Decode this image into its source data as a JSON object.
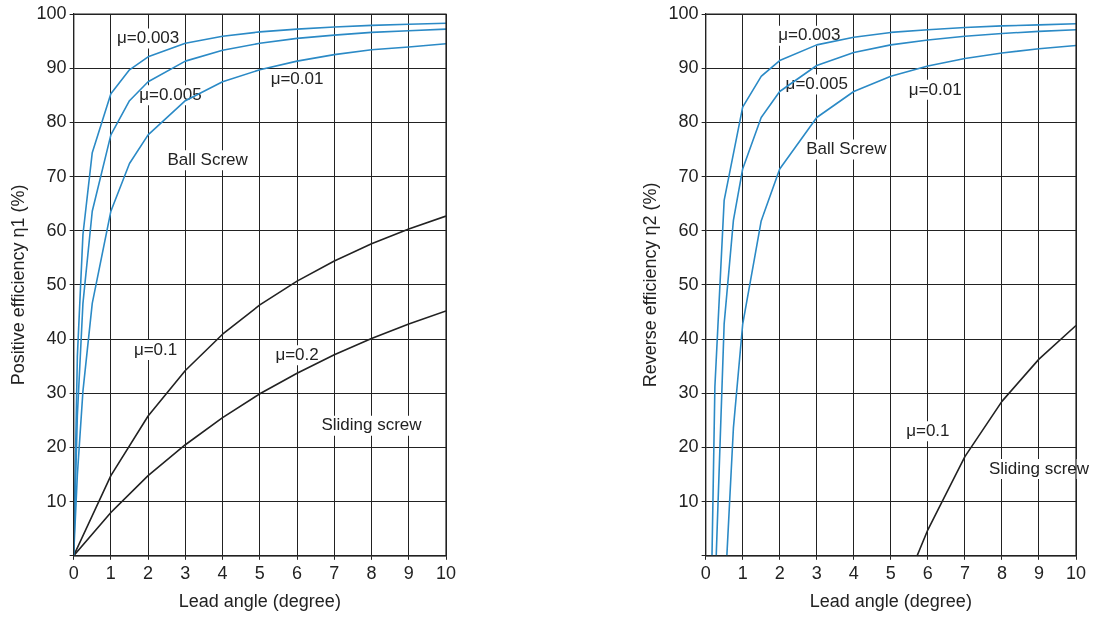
{
  "chart_data": [
    {
      "type": "line",
      "xlabel": "Lead angle (degree)",
      "ylabel": "Positive efficiency η1 (%)",
      "xlim": [
        0,
        10
      ],
      "xticks": [
        0,
        1,
        2,
        3,
        4,
        5,
        6,
        7,
        8,
        9,
        10
      ],
      "ylim": [
        0,
        100
      ],
      "yticks": [
        {
          "value": 0,
          "label": null
        },
        10,
        20,
        30,
        40,
        50,
        60,
        70,
        80,
        90,
        100
      ],
      "grid": true,
      "legend": false,
      "marker": "none",
      "line_style": "solid",
      "series": [
        {
          "color": "#2b8ac6",
          "x": [
            0,
            0.1,
            0.25,
            0.5,
            1,
            1.5,
            2,
            3,
            4,
            5,
            6,
            7,
            8,
            9,
            10
          ],
          "values": [
            0,
            36.8,
            59.3,
            74.4,
            85.3,
            89.7,
            92.1,
            94.6,
            95.9,
            96.7,
            97.2,
            97.6,
            97.9,
            98.1,
            98.3
          ]
        },
        {
          "color": "#2b8ac6",
          "x": [
            0,
            0.1,
            0.25,
            0.5,
            1,
            1.5,
            2,
            3,
            4,
            5,
            6,
            7,
            8,
            9,
            10
          ],
          "values": [
            0,
            25.9,
            46.6,
            63.6,
            77.7,
            84.0,
            87.5,
            91.3,
            93.3,
            94.6,
            95.5,
            96.1,
            96.6,
            96.9,
            97.2
          ]
        },
        {
          "color": "#2b8ac6",
          "x": [
            0,
            0.1,
            0.25,
            0.5,
            1,
            1.5,
            2,
            3,
            4,
            5,
            6,
            7,
            8,
            9,
            10
          ],
          "values": [
            0,
            14.9,
            30.4,
            46.6,
            63.6,
            72.4,
            77.7,
            84.0,
            87.5,
            89.7,
            91.3,
            92.5,
            93.4,
            93.9,
            94.5
          ]
        },
        {
          "color": "#222222",
          "x": [
            0,
            1,
            2,
            3,
            4,
            5,
            6,
            7,
            8,
            9,
            10
          ],
          "values": [
            0,
            14.8,
            25.8,
            34.2,
            40.9,
            46.3,
            50.7,
            54.4,
            57.6,
            60.3,
            62.7
          ]
        },
        {
          "color": "#222222",
          "x": [
            0,
            1,
            2,
            3,
            4,
            5,
            6,
            7,
            8,
            9,
            10
          ],
          "values": [
            0,
            8.0,
            14.8,
            20.5,
            25.5,
            29.9,
            33.7,
            37.1,
            40.1,
            42.8,
            45.2
          ]
        }
      ],
      "annotations": [
        "μ=0.003",
        "μ=0.005",
        "μ=0.01",
        "Ball Screw",
        "μ=0.1",
        "μ=0.2",
        "Sliding screw"
      ]
    },
    {
      "type": "line",
      "xlabel": "Lead angle (degree)",
      "ylabel": "Reverse efficiency η2 (%)",
      "xlim": [
        0,
        10
      ],
      "xticks": [
        0,
        1,
        2,
        3,
        4,
        5,
        6,
        7,
        8,
        9,
        10
      ],
      "ylim": [
        0,
        100
      ],
      "yticks": [
        {
          "value": 0,
          "label": null
        },
        10,
        20,
        30,
        40,
        50,
        60,
        70,
        80,
        90,
        100
      ],
      "grid": true,
      "legend": false,
      "marker": "none",
      "line_style": "solid",
      "series": [
        {
          "color": "#2b8ac6",
          "x": [
            0.172,
            0.25,
            0.5,
            1,
            1.5,
            2,
            3,
            4,
            5,
            6,
            7,
            8,
            9,
            10
          ],
          "values": [
            0,
            31.2,
            65.6,
            82.8,
            88.5,
            91.4,
            94.3,
            95.7,
            96.6,
            97.1,
            97.5,
            97.8,
            98.0,
            98.2
          ]
        },
        {
          "color": "#2b8ac6",
          "x": [
            0.286,
            0.5,
            0.75,
            1,
            1.5,
            2,
            3,
            4,
            5,
            6,
            7,
            8,
            9,
            10
          ],
          "values": [
            0,
            42.8,
            61.9,
            71.4,
            80.9,
            85.7,
            90.5,
            92.9,
            94.3,
            95.2,
            95.9,
            96.4,
            96.8,
            97.1
          ]
        },
        {
          "color": "#2b8ac6",
          "x": [
            0.573,
            0.75,
            1,
            1.5,
            2,
            3,
            4,
            5,
            6,
            7,
            8,
            9,
            10
          ],
          "values": [
            0,
            23.6,
            42.7,
            61.8,
            71.4,
            80.9,
            85.7,
            88.5,
            90.4,
            91.8,
            92.8,
            93.6,
            94.2
          ]
        },
        {
          "color": "#222222",
          "x": [
            5.71,
            6,
            7,
            8,
            9,
            10
          ],
          "values": [
            0,
            4.8,
            18.3,
            28.5,
            36.3,
            42.5
          ]
        }
      ],
      "annotations": [
        "μ=0.003",
        "μ=0.005",
        "μ=0.01",
        "Ball Screw",
        "μ=0.1",
        "Sliding screw"
      ]
    }
  ]
}
